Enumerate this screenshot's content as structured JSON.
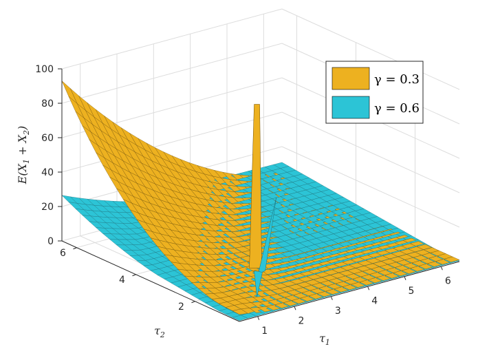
{
  "chart_data": {
    "type": "surface3d",
    "zlabel": "E(X1 + X2)",
    "xlabel": "τ1",
    "ylabel": "τ2",
    "x_ticks": [
      "1",
      "2",
      "3",
      "4",
      "5",
      "6"
    ],
    "y_ticks": [
      "2",
      "4",
      "6"
    ],
    "z_ticks": [
      "0",
      "20",
      "40",
      "60",
      "80",
      "100"
    ],
    "xlim": [
      0.5,
      6.5
    ],
    "ylim": [
      0.5,
      6.5
    ],
    "zlim": [
      0,
      100
    ],
    "grid": true,
    "legend_position": "top-right",
    "series": [
      {
        "name": "γ = 0.3",
        "color": "#EDB120",
        "model": {
          "diag_peak_t": 0.7,
          "front_rise": 92,
          "peak_z": 56,
          "spike_tau": 0.72
        }
      },
      {
        "name": "γ = 0.6",
        "color": "#2CC4D6",
        "model": {
          "floor_z": 15,
          "front_rise": 26,
          "spike_tau": 0.72
        }
      }
    ]
  }
}
